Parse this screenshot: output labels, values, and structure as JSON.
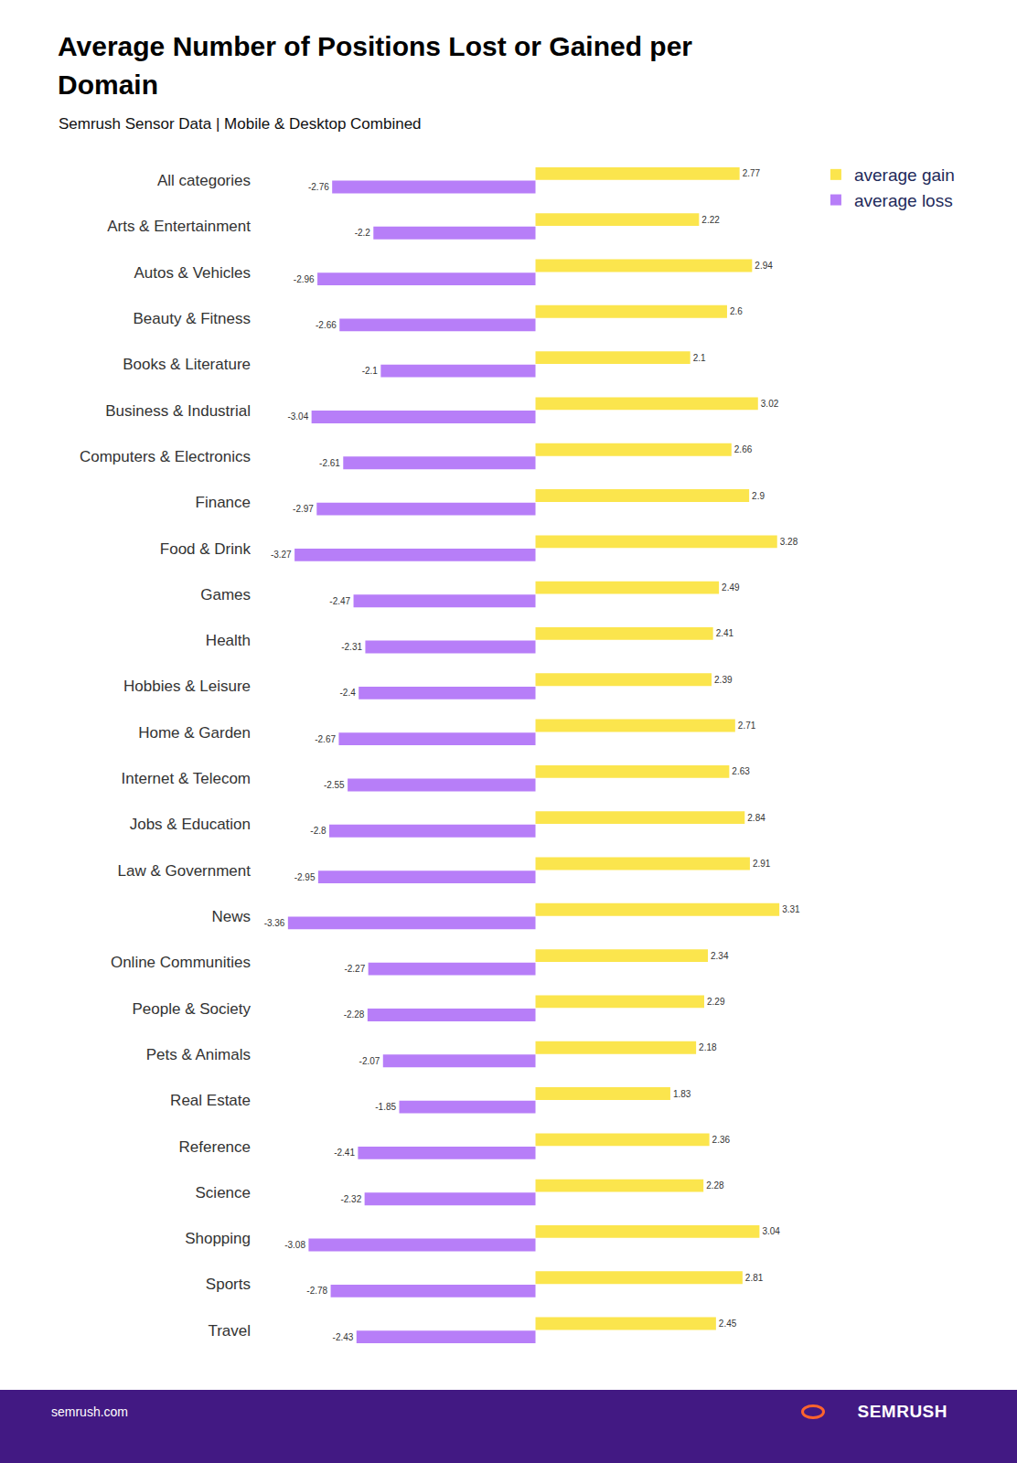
{
  "chart_data": {
    "type": "bar",
    "title": "Average Number of Positions Lost or Gained per Domain",
    "subtitle": "Semrush Sensor Data | Mobile & Desktop Combined",
    "orientation": "horizontal",
    "categories": [
      "All categories",
      "Arts & Entertainment",
      "Autos & Vehicles",
      "Beauty & Fitness",
      "Books & Literature",
      "Business & Industrial",
      "Computers & Electronics",
      "Finance",
      "Food & Drink",
      "Games",
      "Health",
      "Hobbies & Leisure",
      "Home & Garden",
      "Internet & Telecom",
      "Jobs & Education",
      "Law & Government",
      "News",
      "Online Communities",
      "People & Society",
      "Pets & Animals",
      "Real Estate",
      "Reference",
      "Science",
      "Shopping",
      "Sports",
      "Travel"
    ],
    "series": [
      {
        "name": "average gain",
        "color": "#fbe54d",
        "values": [
          2.77,
          2.22,
          2.94,
          2.6,
          2.1,
          3.02,
          2.66,
          2.9,
          3.28,
          2.49,
          2.41,
          2.39,
          2.71,
          2.63,
          2.84,
          2.91,
          3.31,
          2.34,
          2.29,
          2.18,
          1.83,
          2.36,
          2.28,
          3.04,
          2.81,
          2.45
        ]
      },
      {
        "name": "average loss",
        "color": "#b77ef8",
        "values": [
          -2.76,
          -2.2,
          -2.96,
          -2.66,
          -2.1,
          -3.04,
          -2.61,
          -2.97,
          -3.27,
          -2.47,
          -2.31,
          -2.4,
          -2.67,
          -2.55,
          -2.8,
          -2.95,
          -3.36,
          -2.27,
          -2.28,
          -2.07,
          -1.85,
          -2.41,
          -2.32,
          -3.08,
          -2.78,
          -2.43
        ]
      }
    ],
    "data_labels": true,
    "legend": "top right",
    "grid": false,
    "tick_labels": "y"
  },
  "footer": {
    "left": "semrush.com",
    "brand": "SEMRUSH"
  }
}
